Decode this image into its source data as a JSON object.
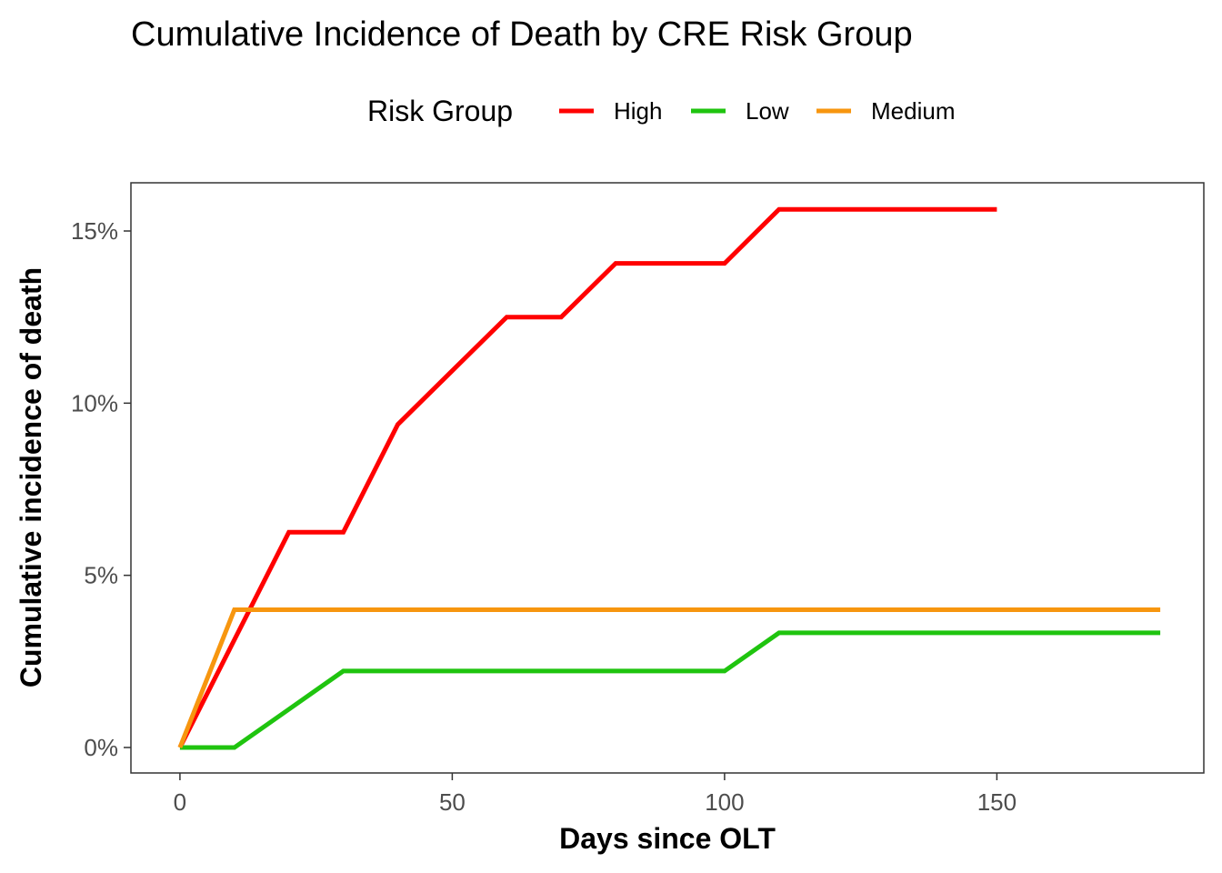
{
  "chart_data": {
    "type": "line",
    "title": "Cumulative Incidence of Death by CRE Risk Group",
    "xlabel": "Days since OLT",
    "ylabel": "Cumulative incidence of death",
    "xlim": [
      -9,
      188
    ],
    "ylim": [
      -0.0074,
      0.164
    ],
    "x_ticks": [
      0,
      50,
      100,
      150
    ],
    "x_tick_labels": [
      "0",
      "50",
      "100",
      "150"
    ],
    "y_ticks": [
      0,
      0.05,
      0.1,
      0.15
    ],
    "y_tick_labels": [
      "0%",
      "5%",
      "10%",
      "15%"
    ],
    "grid": false,
    "legend": {
      "title": "Risk Group",
      "position": "top"
    },
    "series": [
      {
        "name": "High",
        "color": "#ff0000",
        "x": [
          0,
          10,
          20,
          30,
          40,
          50,
          60,
          70,
          80,
          90,
          100,
          110,
          150
        ],
        "y": [
          0,
          0.0313,
          0.0625,
          0.0625,
          0.0938,
          0.1094,
          0.125,
          0.125,
          0.1406,
          0.1406,
          0.1406,
          0.1563,
          0.1563
        ]
      },
      {
        "name": "Low",
        "color": "#1fc40f",
        "x": [
          0,
          10,
          20,
          30,
          40,
          100,
          110,
          180
        ],
        "y": [
          0,
          0,
          0.0111,
          0.0222,
          0.0222,
          0.0222,
          0.0333,
          0.0333
        ]
      },
      {
        "name": "Medium",
        "color": "#f7960f",
        "x": [
          0,
          10,
          20,
          180
        ],
        "y": [
          0,
          0.04,
          0.04,
          0.04
        ]
      }
    ]
  }
}
